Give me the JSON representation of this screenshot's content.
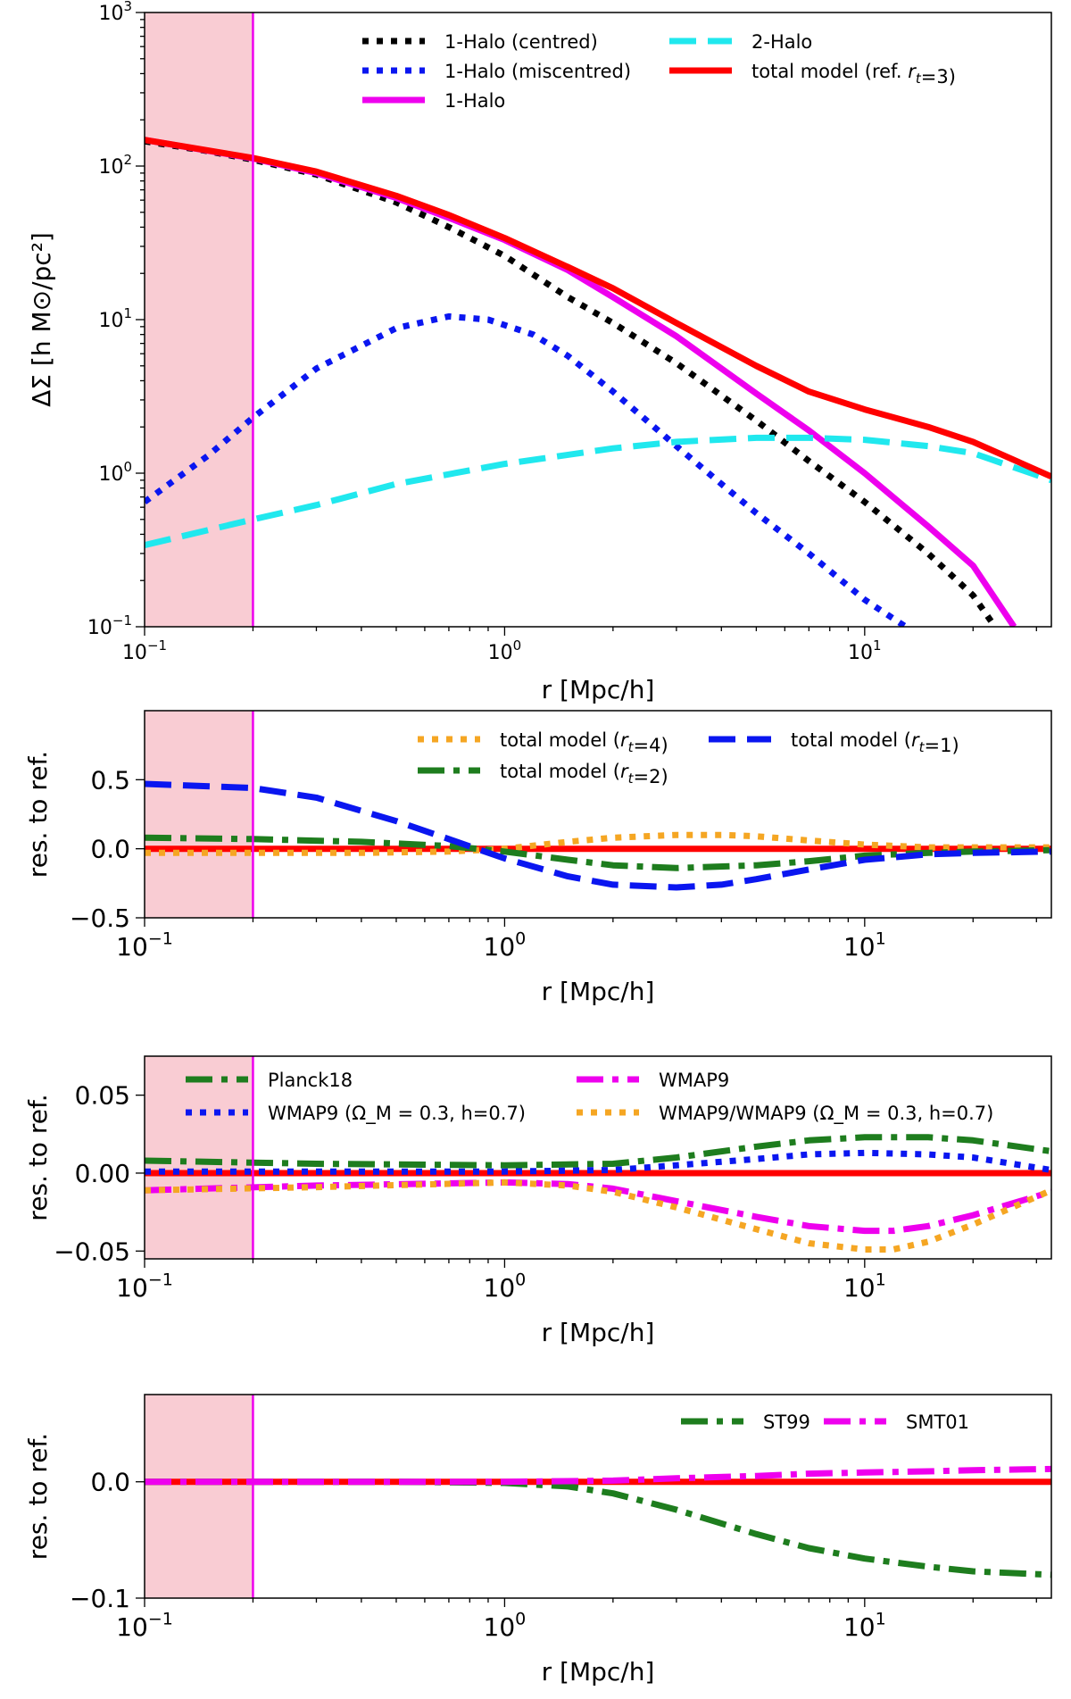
{
  "chart_data": [
    {
      "type": "line",
      "panel": "profile",
      "xscale": "log",
      "yscale": "log",
      "xlim": [
        0.1,
        33
      ],
      "ylim": [
        0.1,
        1000
      ],
      "xlabel": "r [Mpc/h]",
      "ylabel": "ΔΣ [h M⊙/pc²]",
      "xticks": [
        {
          "v": 0.1,
          "b": "10",
          "e": "−1"
        },
        {
          "v": 1,
          "b": "10",
          "e": "0"
        },
        {
          "v": 10,
          "b": "10",
          "e": "1"
        }
      ],
      "yticks": [
        {
          "v": 0.1,
          "b": "10",
          "e": "−1"
        },
        {
          "v": 1,
          "b": "10",
          "e": "0"
        },
        {
          "v": 10,
          "b": "10",
          "e": "1"
        },
        {
          "v": 100,
          "b": "10",
          "e": "2"
        },
        {
          "v": 1000,
          "b": "10",
          "e": "3"
        }
      ],
      "shaded_region": {
        "x": [
          0.1,
          0.2
        ],
        "color": "#f9ccd3"
      },
      "vline": {
        "x": 0.2,
        "color": "#ee00ee"
      },
      "legend": {
        "placement": "top-right",
        "columns": 2
      },
      "series": [
        {
          "name": "1-Halo (centred)",
          "color": "#000000",
          "style": "dotted",
          "legend_col": 0,
          "x": [
            0.1,
            0.15,
            0.2,
            0.3,
            0.5,
            0.7,
            1,
            1.5,
            2,
            3,
            5,
            7,
            10,
            15,
            20,
            23
          ],
          "y": [
            145,
            125,
            110,
            88,
            58,
            40,
            26,
            14,
            9.5,
            5.2,
            2.2,
            1.2,
            0.65,
            0.3,
            0.16,
            0.1
          ]
        },
        {
          "name": "1-Halo (miscentred)",
          "color": "#0a16f0",
          "style": "dotted",
          "legend_col": 0,
          "x": [
            0.1,
            0.15,
            0.2,
            0.3,
            0.5,
            0.7,
            0.9,
            1.2,
            1.5,
            2,
            3,
            4,
            5,
            7,
            10,
            13
          ],
          "y": [
            0.65,
            1.3,
            2.3,
            4.8,
            8.8,
            10.5,
            10,
            8,
            5.8,
            3.4,
            1.5,
            0.85,
            0.55,
            0.3,
            0.15,
            0.1
          ]
        },
        {
          "name": "1-Halo",
          "color": "#ee00ee",
          "style": "solid",
          "legend_col": 0,
          "x": [
            0.1,
            0.2,
            0.3,
            0.5,
            0.7,
            1,
            1.5,
            2,
            3,
            5,
            7,
            10,
            15,
            20,
            26
          ],
          "y": [
            148,
            112,
            90,
            62,
            46,
            33,
            21,
            14,
            7.8,
            3.3,
            1.9,
            1.0,
            0.45,
            0.25,
            0.1
          ]
        },
        {
          "name": "2-Halo",
          "color": "#20e8ee",
          "style": "dashed",
          "legend_col": 1,
          "x": [
            0.1,
            0.2,
            0.3,
            0.5,
            1,
            2,
            3,
            5,
            7,
            10,
            15,
            20,
            33
          ],
          "y": [
            0.34,
            0.5,
            0.62,
            0.85,
            1.15,
            1.45,
            1.6,
            1.7,
            1.7,
            1.65,
            1.5,
            1.35,
            0.9
          ]
        },
        {
          "name": "total model (ref. r_t=3)",
          "color": "#ff0000",
          "style": "solid",
          "legend_col": 1,
          "x": [
            0.1,
            0.2,
            0.3,
            0.5,
            0.7,
            1,
            1.5,
            2,
            3,
            5,
            7,
            10,
            15,
            20,
            33
          ],
          "y": [
            148,
            113,
            92,
            64,
            48,
            34,
            22,
            16,
            9.5,
            5,
            3.4,
            2.6,
            2.0,
            1.6,
            0.95
          ]
        }
      ]
    },
    {
      "type": "line",
      "panel": "residual-rt",
      "xscale": "log",
      "yscale": "linear",
      "xlim": [
        0.1,
        33
      ],
      "ylim": [
        -0.5,
        1.0
      ],
      "xlabel": "r [Mpc/h]",
      "ylabel": "res. to ref.",
      "xticks": [
        {
          "v": 0.1,
          "b": "10",
          "e": "−1"
        },
        {
          "v": 1,
          "b": "10",
          "e": "0"
        },
        {
          "v": 10,
          "b": "10",
          "e": "1"
        }
      ],
      "yticks": [
        {
          "v": 0.5,
          "t": "0.5"
        },
        {
          "v": 0,
          "t": "0.0"
        },
        {
          "v": -0.5,
          "t": "−0.5"
        }
      ],
      "shaded_region": {
        "x": [
          0.1,
          0.2
        ],
        "color": "#f9ccd3"
      },
      "vline": {
        "x": 0.2,
        "color": "#ee00ee"
      },
      "legend": {
        "placement": "top-right",
        "columns": 2
      },
      "series": [
        {
          "name": "total model  (r_t=4)",
          "color": "#f5a623",
          "style": "dotted",
          "legend_col": 0,
          "x": [
            0.1,
            0.2,
            0.4,
            0.7,
            1,
            1.5,
            2,
            3,
            4,
            5,
            7,
            10,
            15,
            20,
            33
          ],
          "y": [
            -0.03,
            -0.03,
            -0.03,
            -0.02,
            0,
            0.05,
            0.08,
            0.1,
            0.1,
            0.09,
            0.06,
            0.03,
            0.01,
            0.01,
            0.01
          ]
        },
        {
          "name": "total model  (r_t=2)",
          "color": "#1e7d1e",
          "style": "dashdot",
          "legend_col": 0,
          "x": [
            0.1,
            0.2,
            0.4,
            0.7,
            1,
            1.5,
            2,
            3,
            5,
            7,
            10,
            15,
            20,
            33
          ],
          "y": [
            0.08,
            0.07,
            0.05,
            0.02,
            -0.02,
            -0.08,
            -0.12,
            -0.14,
            -0.12,
            -0.09,
            -0.05,
            -0.03,
            -0.02,
            -0.01
          ]
        },
        {
          "name": "total model  (r_t=1)",
          "color": "#0a16f0",
          "style": "dashed",
          "legend_col": 1,
          "x": [
            0.1,
            0.2,
            0.3,
            0.5,
            0.7,
            1,
            1.5,
            2,
            3,
            4,
            5,
            7,
            10,
            15,
            20,
            33
          ],
          "y": [
            0.47,
            0.44,
            0.37,
            0.2,
            0.07,
            -0.07,
            -0.2,
            -0.26,
            -0.28,
            -0.26,
            -0.22,
            -0.15,
            -0.08,
            -0.04,
            -0.03,
            -0.02
          ]
        },
        {
          "name": "",
          "color": "#ff0000",
          "style": "solid",
          "x": [
            0.1,
            33
          ],
          "y": [
            0,
            0
          ]
        }
      ]
    },
    {
      "type": "line",
      "panel": "residual-cosmology",
      "xscale": "log",
      "yscale": "linear",
      "xlim": [
        0.1,
        33
      ],
      "ylim": [
        -0.055,
        0.075
      ],
      "xlabel": "r [Mpc/h]",
      "ylabel": "res. to ref.",
      "xticks": [
        {
          "v": 0.1,
          "b": "10",
          "e": "−1"
        },
        {
          "v": 1,
          "b": "10",
          "e": "0"
        },
        {
          "v": 10,
          "b": "10",
          "e": "1"
        }
      ],
      "yticks": [
        {
          "v": 0.05,
          "t": "0.05"
        },
        {
          "v": 0,
          "t": "0.00"
        },
        {
          "v": -0.05,
          "t": "−0.05"
        }
      ],
      "shaded_region": {
        "x": [
          0.1,
          0.2
        ],
        "color": "#f9ccd3"
      },
      "vline": {
        "x": 0.2,
        "color": "#ee00ee"
      },
      "legend": {
        "placement": "top",
        "columns": 2
      },
      "series": [
        {
          "name": "Planck18",
          "color": "#1e7d1e",
          "style": "dashdot",
          "legend_col": 0,
          "x": [
            0.1,
            0.3,
            1,
            2,
            3,
            5,
            7,
            10,
            15,
            20,
            33
          ],
          "y": [
            0.008,
            0.006,
            0.005,
            0.006,
            0.01,
            0.017,
            0.021,
            0.023,
            0.023,
            0.021,
            0.014
          ]
        },
        {
          "name": "WMAP9  (Ω_M = 0.3,  h=0.7)",
          "color": "#0a16f0",
          "style": "dotted",
          "legend_col": 0,
          "x": [
            0.1,
            0.5,
            1,
            2,
            3,
            5,
            7,
            10,
            15,
            20,
            33
          ],
          "y": [
            0.001,
            0.001,
            0.001,
            0.002,
            0.005,
            0.009,
            0.012,
            0.013,
            0.012,
            0.01,
            0.002
          ]
        },
        {
          "name": "WMAP9",
          "color": "#ee00ee",
          "style": "dashdot",
          "legend_col": 1,
          "x": [
            0.1,
            0.3,
            1,
            1.5,
            2,
            3,
            5,
            7,
            10,
            12,
            15,
            20,
            33
          ],
          "y": [
            -0.011,
            -0.008,
            -0.006,
            -0.007,
            -0.01,
            -0.018,
            -0.028,
            -0.034,
            -0.037,
            -0.037,
            -0.034,
            -0.027,
            -0.012
          ]
        },
        {
          "name": "WMAP9/WMAP9 (Ω_M = 0.3,  h=0.7)",
          "color": "#f5a623",
          "style": "dotted",
          "legend_col": 1,
          "x": [
            0.1,
            0.3,
            1,
            1.5,
            2,
            3,
            5,
            7,
            10,
            12,
            15,
            20,
            33
          ],
          "y": [
            -0.011,
            -0.009,
            -0.006,
            -0.008,
            -0.012,
            -0.022,
            -0.036,
            -0.045,
            -0.049,
            -0.049,
            -0.044,
            -0.033,
            -0.011
          ]
        },
        {
          "name": "",
          "color": "#ff0000",
          "style": "solid",
          "x": [
            0.1,
            33
          ],
          "y": [
            0,
            0
          ]
        }
      ]
    },
    {
      "type": "line",
      "panel": "residual-massfunction",
      "xscale": "log",
      "yscale": "linear",
      "xlim": [
        0.1,
        33
      ],
      "ylim": [
        -0.1,
        0.075
      ],
      "xlabel": "r [Mpc/h]",
      "ylabel": "res. to ref.",
      "xticks": [
        {
          "v": 0.1,
          "b": "10",
          "e": "−1"
        },
        {
          "v": 1,
          "b": "10",
          "e": "0"
        },
        {
          "v": 10,
          "b": "10",
          "e": "1"
        }
      ],
      "yticks": [
        {
          "v": 0,
          "t": "0.0"
        },
        {
          "v": -0.1,
          "t": "−0.1"
        }
      ],
      "shaded_region": {
        "x": [
          0.1,
          0.2
        ],
        "color": "#f9ccd3"
      },
      "vline": {
        "x": 0.2,
        "color": "#ee00ee"
      },
      "legend": {
        "placement": "top-right",
        "columns": 2
      },
      "series": [
        {
          "name": "ST99",
          "color": "#1e7d1e",
          "style": "dashdot",
          "legend_col": 0,
          "x": [
            0.1,
            0.5,
            1,
            1.5,
            2,
            3,
            5,
            7,
            10,
            15,
            20,
            33
          ],
          "y": [
            0,
            0,
            -0.001,
            -0.004,
            -0.01,
            -0.024,
            -0.045,
            -0.057,
            -0.066,
            -0.073,
            -0.077,
            -0.08
          ]
        },
        {
          "name": "SMT01",
          "color": "#ee00ee",
          "style": "dashdot",
          "legend_col": 1,
          "x": [
            0.1,
            0.5,
            1,
            2,
            3,
            5,
            7,
            10,
            15,
            20,
            33
          ],
          "y": [
            0,
            0,
            0,
            0.001,
            0.003,
            0.005,
            0.007,
            0.008,
            0.009,
            0.01,
            0.011
          ]
        },
        {
          "name": "",
          "color": "#ff0000",
          "style": "solid",
          "x": [
            0.1,
            33
          ],
          "y": [
            0,
            0
          ]
        }
      ]
    }
  ]
}
